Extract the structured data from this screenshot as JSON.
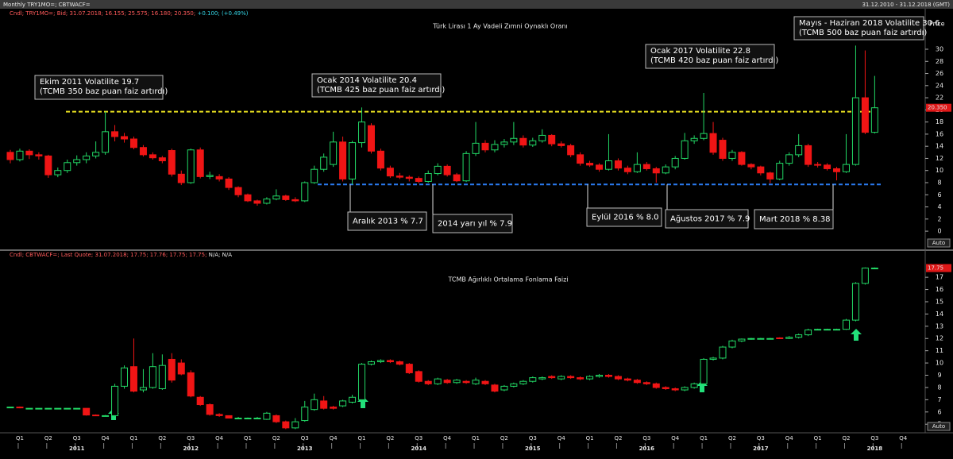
{
  "header": {
    "left": "Monthly TRY1MO=; CBTWACF=",
    "right": "31.12.2010 - 31.12.2018 (GMT)"
  },
  "x_axis": {
    "quarters": [
      "Q1",
      "Q2",
      "Q3",
      "Q4",
      "Q1",
      "Q2",
      "Q3",
      "Q4",
      "Q1",
      "Q2",
      "Q3",
      "Q4",
      "Q1",
      "Q2",
      "Q3",
      "Q4",
      "Q1",
      "Q2",
      "Q3",
      "Q4",
      "Q1",
      "Q2",
      "Q3",
      "Q4",
      "Q1",
      "Q2",
      "Q3",
      "Q4",
      "Q1",
      "Q2",
      "Q3",
      "Q4"
    ],
    "years": [
      "2011",
      "2012",
      "2013",
      "2014",
      "2015",
      "2016",
      "2017",
      "2018"
    ]
  },
  "chart_data": [
    {
      "type": "candlestick",
      "title": "Türk Lirası 1 Ay Vadeli Zımni Oynaklı Oranı",
      "info": "Cndl; TRY1MO=; Bid; 31.07.2018; 16.155; 25.575; 16.180; 20.350;",
      "info_change": " +0.100; (+0.49%)",
      "axis_label": "Price",
      "auto_label": "Auto",
      "last_price": {
        "value": 20.35,
        "label": "20.350"
      },
      "up_color": "#22d865",
      "down_color": "#f01515",
      "ylim": [
        -3,
        35.5
      ],
      "yticks": [
        0,
        2,
        4,
        6,
        8,
        10,
        12,
        14,
        16,
        18,
        20,
        22,
        24,
        26,
        28,
        30
      ],
      "reference_lines": [
        {
          "value": 19.7,
          "color": "#e8e020"
        },
        {
          "value": 7.7,
          "color": "#2a7af0"
        }
      ],
      "annotations": [
        {
          "lines": [
            "Ekim 2011 Volatilite 19.7",
            "(TCMB 350 baz puan faiz artırdı)"
          ]
        },
        {
          "lines": [
            "Ocak 2014 Volatilite 20.4",
            "(TCMB 425 baz puan faiz artırdı)"
          ]
        },
        {
          "lines": [
            "Ocak 2017 Volatilite 22.8",
            "(TCMB 420 baz puan faiz artırdı)"
          ]
        },
        {
          "lines": [
            "Mayıs - Haziran 2018 Volatilite 30.6",
            "(TCMB 500 baz puan faiz artırdı)"
          ]
        },
        {
          "lines": [
            "Aralık 2013  % 7.7"
          ]
        },
        {
          "lines": [
            "2014 yarı yıl  % 7.9"
          ]
        },
        {
          "lines": [
            "Eylül 2016  % 8.0"
          ]
        },
        {
          "lines": [
            "Ağustos 2017  % 7.9"
          ]
        },
        {
          "lines": [
            "Mart 2018  % 8.38"
          ]
        }
      ],
      "open": [
        13.0,
        11.8,
        13.2,
        12.6,
        12.4,
        9.3,
        10.0,
        11.3,
        11.8,
        12.4,
        13.0,
        16.4,
        15.6,
        15.2,
        13.8,
        12.6,
        12.1,
        13.3,
        9.4,
        8.0,
        13.4,
        9.0,
        9.0,
        8.6,
        7.2,
        6.0,
        5.0,
        4.6,
        5.3,
        5.8,
        5.2,
        5.0,
        8.0,
        10.2,
        11.0,
        14.7,
        8.6,
        14.6,
        17.4,
        13.2,
        10.4,
        9.1,
        8.9,
        8.7,
        8.2,
        9.5,
        10.7,
        9.3,
        8.3,
        12.8,
        14.5,
        13.4,
        14.3,
        14.7,
        15.3,
        14.2,
        14.9,
        15.8,
        14.4,
        14.1,
        12.6,
        11.2,
        10.9,
        10.2,
        11.6,
        10.4,
        9.8,
        11.0,
        10.3,
        9.6,
        10.6,
        12.0,
        14.9,
        15.3,
        16.1,
        15.0,
        12.0,
        13.0,
        11.0,
        10.6,
        9.6,
        8.6,
        11.2,
        12.6,
        14.1,
        11.0,
        10.9,
        10.3,
        9.8,
        11.0,
        22.0,
        16.3
      ],
      "high": [
        13.4,
        13.6,
        13.5,
        13.0,
        12.6,
        10.5,
        11.8,
        12.5,
        13.0,
        14.8,
        19.7,
        17.5,
        16.2,
        15.6,
        14.2,
        13.0,
        12.4,
        13.6,
        10.0,
        13.6,
        13.8,
        9.8,
        9.4,
        8.9,
        7.4,
        6.2,
        5.2,
        5.6,
        6.9,
        6.0,
        5.6,
        8.2,
        10.8,
        12.8,
        16.4,
        15.6,
        14.9,
        20.4,
        17.8,
        13.6,
        10.8,
        9.6,
        9.2,
        9.0,
        10.0,
        11.2,
        11.0,
        9.6,
        13.2,
        18.0,
        15.0,
        15.0,
        15.2,
        18.0,
        15.8,
        15.4,
        16.8,
        16.0,
        14.8,
        14.4,
        13.0,
        11.6,
        11.2,
        16.0,
        12.0,
        10.8,
        13.0,
        11.4,
        10.6,
        11.0,
        12.4,
        16.2,
        15.8,
        22.8,
        18.0,
        15.4,
        13.4,
        13.2,
        11.2,
        10.8,
        9.8,
        11.6,
        13.0,
        16.0,
        14.4,
        11.4,
        11.2,
        10.6,
        16.0,
        30.6,
        29.8,
        25.6
      ],
      "low": [
        11.2,
        11.5,
        11.9,
        11.8,
        8.8,
        8.9,
        9.6,
        10.8,
        11.2,
        12.0,
        12.6,
        14.8,
        14.6,
        13.5,
        12.3,
        11.8,
        11.2,
        9.0,
        7.6,
        7.8,
        8.7,
        8.6,
        8.2,
        6.8,
        5.6,
        4.8,
        4.2,
        4.4,
        5.1,
        5.0,
        4.8,
        4.8,
        7.8,
        9.8,
        10.6,
        8.2,
        7.7,
        13.8,
        12.8,
        10.0,
        8.8,
        8.6,
        8.2,
        7.9,
        8.0,
        9.2,
        9.0,
        8.1,
        8.1,
        12.4,
        13.0,
        13.0,
        13.8,
        14.2,
        13.8,
        13.9,
        14.6,
        14.0,
        13.8,
        12.2,
        10.8,
        10.6,
        9.8,
        10.0,
        10.0,
        9.4,
        9.6,
        10.0,
        8.0,
        9.4,
        10.2,
        11.8,
        14.4,
        15.0,
        12.6,
        11.6,
        11.6,
        10.8,
        10.2,
        9.2,
        7.9,
        8.4,
        10.8,
        12.2,
        10.6,
        10.5,
        10.0,
        8.38,
        9.6,
        10.8,
        16.0,
        16.1
      ],
      "close": [
        11.8,
        13.2,
        12.6,
        12.4,
        9.3,
        10.0,
        11.3,
        11.8,
        12.4,
        13.0,
        16.4,
        15.6,
        15.2,
        13.8,
        12.6,
        12.1,
        11.6,
        9.4,
        8.0,
        13.4,
        9.0,
        9.2,
        8.6,
        7.2,
        6.0,
        5.0,
        4.6,
        5.3,
        5.8,
        5.2,
        5.0,
        8.0,
        10.2,
        12.2,
        14.7,
        8.6,
        14.6,
        18.0,
        13.2,
        10.4,
        9.1,
        8.9,
        8.7,
        8.2,
        9.5,
        10.7,
        9.3,
        8.3,
        12.8,
        14.5,
        13.4,
        14.3,
        14.7,
        15.3,
        14.2,
        14.9,
        15.8,
        14.4,
        14.1,
        12.6,
        11.2,
        10.9,
        10.2,
        11.6,
        10.4,
        9.8,
        11.0,
        10.3,
        9.6,
        10.6,
        12.0,
        14.9,
        15.3,
        16.1,
        13.0,
        12.0,
        13.0,
        11.0,
        10.6,
        9.6,
        8.6,
        11.2,
        12.6,
        14.1,
        11.0,
        10.9,
        10.3,
        9.8,
        11.0,
        22.0,
        16.3,
        20.35
      ]
    },
    {
      "type": "candlestick",
      "title": "TCMB Ağırlıklı Ortalama Fonlama Faizi",
      "info": "Cndl; CBTWACF=; Last Quote; 31.07.2018; 17.75; 17.76; 17.75; 17.75;",
      "info_change": " N/A; N/A",
      "axis_label": "Price",
      "auto_label": "Auto",
      "last_price": {
        "value": 17.75,
        "label": "17.75"
      },
      "up_color": "#22d865",
      "down_color": "#f01515",
      "ylim": [
        4.3,
        18.5
      ],
      "yticks": [
        5,
        6,
        7,
        8,
        9,
        10,
        11,
        12,
        13,
        14,
        15,
        16,
        17
      ],
      "open": [
        6.4,
        6.4,
        6.3,
        6.3,
        6.3,
        6.3,
        6.3,
        6.3,
        6.3,
        5.75,
        5.7,
        5.7,
        8.1,
        9.7,
        7.8,
        8.0,
        7.9,
        10.3,
        10.0,
        9.2,
        7.2,
        6.6,
        5.8,
        5.7,
        5.5,
        5.45,
        5.5,
        5.4,
        5.7,
        5.2,
        4.7,
        5.3,
        6.2,
        6.9,
        6.4,
        6.5,
        6.8,
        7.0,
        9.9,
        10.1,
        10.2,
        10.1,
        9.9,
        9.3,
        8.5,
        8.3,
        8.6,
        8.4,
        8.5,
        8.3,
        8.5,
        8.2,
        7.8,
        8.1,
        8.3,
        8.5,
        8.7,
        8.9,
        8.7,
        8.9,
        8.8,
        8.7,
        8.9,
        9.0,
        8.9,
        8.7,
        8.6,
        8.4,
        8.3,
        8.0,
        7.9,
        7.8,
        8.0,
        8.3,
        10.3,
        10.4,
        11.3,
        11.8,
        11.95,
        12.0,
        12.0,
        12.05,
        12.0,
        12.1,
        12.3,
        12.75,
        12.75,
        12.75,
        12.75,
        13.5,
        16.5,
        17.75
      ],
      "high": [
        6.4,
        6.45,
        6.3,
        6.3,
        6.3,
        6.3,
        6.3,
        6.3,
        6.3,
        5.8,
        5.75,
        8.3,
        9.8,
        12.0,
        9.5,
        10.8,
        10.7,
        10.8,
        10.3,
        9.4,
        7.3,
        6.7,
        5.9,
        5.7,
        5.6,
        5.55,
        5.6,
        6.0,
        5.8,
        5.3,
        5.5,
        6.9,
        7.5,
        7.3,
        6.5,
        7.0,
        7.4,
        10.0,
        10.2,
        10.3,
        10.3,
        10.2,
        10.0,
        9.4,
        8.6,
        8.8,
        8.7,
        8.7,
        8.6,
        8.8,
        8.6,
        8.3,
        8.2,
        8.4,
        8.6,
        8.9,
        8.9,
        9.0,
        9.0,
        9.0,
        8.9,
        9.0,
        9.1,
        9.1,
        9.0,
        8.8,
        8.7,
        8.5,
        8.4,
        8.1,
        8.0,
        8.1,
        8.4,
        10.4,
        10.5,
        11.4,
        11.9,
        12.0,
        12.05,
        12.05,
        12.05,
        12.1,
        12.2,
        12.4,
        12.8,
        12.8,
        12.8,
        12.8,
        13.6,
        16.6,
        17.8,
        17.8
      ],
      "low": [
        6.4,
        6.3,
        6.3,
        6.3,
        6.3,
        6.3,
        6.3,
        6.3,
        5.7,
        5.7,
        5.65,
        5.6,
        7.9,
        7.6,
        7.6,
        7.9,
        7.8,
        8.4,
        9.0,
        7.2,
        6.5,
        5.7,
        5.6,
        5.5,
        5.45,
        5.4,
        5.45,
        5.35,
        5.1,
        4.6,
        4.6,
        5.2,
        6.1,
        6.2,
        6.2,
        6.4,
        6.7,
        6.9,
        9.8,
        10.0,
        10.0,
        9.8,
        9.1,
        8.4,
        8.2,
        8.2,
        8.3,
        8.3,
        8.3,
        8.2,
        8.2,
        7.6,
        7.7,
        8.0,
        8.2,
        8.4,
        8.6,
        8.7,
        8.6,
        8.7,
        8.6,
        8.6,
        8.8,
        8.8,
        8.6,
        8.5,
        8.3,
        8.2,
        7.9,
        7.8,
        7.7,
        7.7,
        7.9,
        8.2,
        10.2,
        10.3,
        11.2,
        11.7,
        11.9,
        11.95,
        11.95,
        11.95,
        11.95,
        12.0,
        12.2,
        12.7,
        12.7,
        12.7,
        12.7,
        13.4,
        16.4,
        17.7
      ],
      "close": [
        6.4,
        6.35,
        6.3,
        6.3,
        6.3,
        6.3,
        6.3,
        6.3,
        5.75,
        5.7,
        5.7,
        8.1,
        9.6,
        7.7,
        8.0,
        9.7,
        9.8,
        8.6,
        9.1,
        7.3,
        6.6,
        5.8,
        5.7,
        5.5,
        5.5,
        5.5,
        5.5,
        5.9,
        5.2,
        4.7,
        5.2,
        6.4,
        7.0,
        6.3,
        6.3,
        6.9,
        7.2,
        9.9,
        10.1,
        10.2,
        10.1,
        9.9,
        9.2,
        8.5,
        8.3,
        8.7,
        8.4,
        8.6,
        8.4,
        8.6,
        8.3,
        7.7,
        8.1,
        8.3,
        8.5,
        8.8,
        8.8,
        8.8,
        8.9,
        8.8,
        8.7,
        8.9,
        9.0,
        8.9,
        8.7,
        8.6,
        8.4,
        8.3,
        8.0,
        7.9,
        7.8,
        8.0,
        8.3,
        10.3,
        10.4,
        11.3,
        11.8,
        11.95,
        12.0,
        12.0,
        12.0,
        12.0,
        12.1,
        12.3,
        12.7,
        12.75,
        12.75,
        12.75,
        13.5,
        16.5,
        17.75,
        17.75
      ]
    }
  ]
}
